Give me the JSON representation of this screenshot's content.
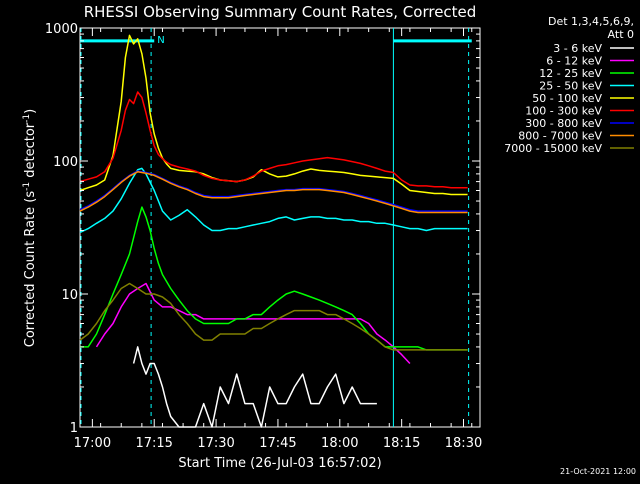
{
  "chart_data": {
    "type": "line",
    "title": "RHESSI Observing Summary Count Rates, Corrected",
    "xlabel": "Start Time (26-Jul-03 16:57:02)",
    "ylabel_main": "Corrected Count Rate (s",
    "ylabel_sup1": "-1",
    "ylabel_mid": " detector",
    "ylabel_sup2": "-1",
    "ylabel_end": ")",
    "x_unit": "minutes after 16:57:02",
    "xlim": [
      0,
      97
    ],
    "ylim": [
      1,
      1000
    ],
    "yscale": "log",
    "x_ticks": [
      {
        "value": 3,
        "label": "17:00"
      },
      {
        "value": 18,
        "label": "17:15"
      },
      {
        "value": 33,
        "label": "17:30"
      },
      {
        "value": 48,
        "label": "17:45"
      },
      {
        "value": 63,
        "label": "18:00"
      },
      {
        "value": 78,
        "label": "18:15"
      },
      {
        "value": 93,
        "label": "18:30"
      }
    ],
    "y_ticks": [
      {
        "value": 1,
        "label": "1"
      },
      {
        "value": 10,
        "label": "10"
      },
      {
        "value": 100,
        "label": "100"
      },
      {
        "value": 1000,
        "label": "1000"
      }
    ],
    "legend_title": [
      "Det 1,3,4,5,6,9,",
      "Att 0"
    ],
    "legend_position": "top-right, outside plot",
    "flags": {
      "label": "N",
      "color": "#00ffff",
      "value": 800,
      "spans": [
        [
          0,
          18
        ],
        [
          76,
          95
        ]
      ]
    },
    "vlines": {
      "solid": [
        76
      ],
      "dashed": [
        0,
        17,
        94
      ]
    },
    "series": [
      {
        "name": "3 - 6 keV",
        "color": "#ffffff",
        "x": [
          13,
          14,
          15,
          16,
          17,
          18,
          19,
          20,
          21,
          22,
          24,
          26,
          28,
          30,
          32,
          34,
          36,
          38,
          40,
          42,
          44,
          46,
          48,
          50,
          52,
          54,
          56,
          58,
          60,
          62,
          64,
          66,
          68,
          70,
          72
        ],
        "y": [
          3,
          4,
          3,
          2.5,
          3,
          3,
          2.5,
          2,
          1.5,
          1.2,
          1,
          1,
          1,
          1.5,
          1,
          2,
          1.5,
          2.5,
          1.5,
          1.5,
          1,
          2,
          1.5,
          1.5,
          2,
          2.5,
          1.5,
          1.5,
          2,
          2.5,
          1.5,
          2,
          1.5,
          1.5,
          1.5
        ]
      },
      {
        "name": "6 - 12 keV",
        "color": "#ff00ff",
        "x": [
          4,
          6,
          8,
          10,
          12,
          14,
          16,
          18,
          20,
          22,
          24,
          26,
          28,
          30,
          32,
          34,
          36,
          38,
          40,
          42,
          44,
          46,
          48,
          50,
          52,
          54,
          56,
          58,
          60,
          62,
          64,
          66,
          68,
          70,
          72,
          74,
          76,
          78,
          80
        ],
        "y": [
          4,
          5,
          6,
          8,
          10,
          11,
          12,
          9,
          8,
          8,
          7.5,
          7,
          7,
          6.5,
          6.5,
          6.5,
          6.5,
          6.5,
          6.5,
          6.5,
          6.5,
          6.5,
          6.5,
          6.5,
          6.5,
          6.5,
          6.5,
          6.5,
          6.5,
          6.5,
          6.5,
          6.5,
          6.5,
          6,
          5,
          4.5,
          4,
          3.5,
          3
        ]
      },
      {
        "name": "12 - 25 keV",
        "color": "#00ff00",
        "x": [
          0,
          2,
          4,
          6,
          8,
          10,
          12,
          14,
          15,
          16,
          17,
          18,
          19,
          20,
          22,
          24,
          26,
          28,
          30,
          32,
          34,
          36,
          38,
          40,
          42,
          44,
          46,
          48,
          50,
          52,
          54,
          56,
          58,
          60,
          62,
          64,
          66,
          68,
          70,
          72,
          74,
          76,
          78,
          80,
          82,
          84,
          86,
          88,
          90,
          92,
          94
        ],
        "y": [
          4,
          4,
          5,
          7,
          10,
          14,
          20,
          35,
          45,
          38,
          30,
          22,
          17,
          14,
          11,
          9,
          7.5,
          6.5,
          6,
          6,
          6,
          6,
          6.5,
          6.5,
          7,
          7,
          8,
          9,
          10,
          10.5,
          10,
          9.5,
          9,
          8.5,
          8,
          7.5,
          7,
          6,
          5,
          4.5,
          4,
          4,
          4,
          4,
          4,
          3.8,
          3.8,
          3.8,
          3.8,
          3.8,
          3.8
        ]
      },
      {
        "name": "25 - 50 keV",
        "color": "#00ffff",
        "x": [
          0,
          2,
          4,
          6,
          8,
          10,
          12,
          14,
          15,
          16,
          18,
          20,
          22,
          24,
          26,
          28,
          30,
          32,
          34,
          36,
          38,
          40,
          42,
          44,
          46,
          48,
          50,
          52,
          54,
          56,
          58,
          60,
          62,
          64,
          66,
          68,
          70,
          72,
          74,
          76,
          78,
          80,
          82,
          84,
          86,
          88,
          90,
          92,
          94
        ],
        "y": [
          29,
          31,
          34,
          37,
          42,
          52,
          68,
          86,
          88,
          80,
          60,
          42,
          36,
          39,
          43,
          38,
          33,
          30,
          30,
          31,
          31,
          32,
          33,
          34,
          35,
          37,
          38,
          36,
          37,
          38,
          38,
          37,
          37,
          36,
          36,
          35,
          35,
          34,
          34,
          33,
          32,
          31,
          31,
          30,
          31,
          31,
          31,
          31,
          31
        ]
      },
      {
        "name": "50 - 100 keV",
        "color": "#ffff00",
        "x": [
          0,
          2,
          4,
          6,
          8,
          10,
          11,
          12,
          13,
          14,
          15,
          16,
          17,
          18,
          19,
          20,
          21,
          22,
          24,
          26,
          28,
          30,
          32,
          34,
          36,
          38,
          40,
          42,
          44,
          46,
          48,
          50,
          52,
          54,
          56,
          58,
          60,
          62,
          64,
          66,
          68,
          70,
          72,
          74,
          76,
          78,
          80,
          82,
          84,
          86,
          88,
          90,
          92,
          94
        ],
        "y": [
          60,
          63,
          66,
          72,
          110,
          280,
          600,
          880,
          760,
          830,
          640,
          420,
          230,
          160,
          125,
          105,
          95,
          88,
          85,
          84,
          83,
          80,
          75,
          72,
          71,
          70,
          72,
          76,
          86,
          80,
          76,
          77,
          80,
          84,
          87,
          85,
          84,
          83,
          82,
          80,
          78,
          77,
          76,
          75,
          74,
          67,
          60,
          59,
          58,
          57,
          57,
          56,
          56,
          56
        ]
      },
      {
        "name": "100 - 300 keV",
        "color": "#ff0000",
        "x": [
          0,
          2,
          4,
          6,
          8,
          10,
          11,
          12,
          13,
          14,
          15,
          16,
          17,
          18,
          19,
          20,
          21,
          22,
          24,
          26,
          28,
          30,
          32,
          34,
          36,
          38,
          40,
          42,
          44,
          46,
          48,
          50,
          52,
          54,
          56,
          58,
          60,
          62,
          64,
          66,
          68,
          70,
          72,
          74,
          76,
          78,
          80,
          82,
          84,
          86,
          88,
          90,
          92,
          94
        ],
        "y": [
          70,
          73,
          76,
          83,
          105,
          170,
          240,
          290,
          270,
          330,
          300,
          230,
          170,
          130,
          112,
          104,
          98,
          94,
          90,
          87,
          84,
          78,
          74,
          72,
          71,
          70,
          72,
          77,
          84,
          88,
          92,
          94,
          97,
          100,
          102,
          104,
          106,
          104,
          102,
          99,
          96,
          92,
          88,
          84,
          82,
          72,
          66,
          65,
          65,
          64,
          64,
          63,
          63,
          63
        ]
      },
      {
        "name": "300 - 800 keV",
        "color": "#0000ff",
        "x": [
          0,
          2,
          4,
          6,
          8,
          10,
          12,
          14,
          16,
          18,
          20,
          22,
          24,
          26,
          28,
          30,
          32,
          34,
          36,
          38,
          40,
          42,
          44,
          46,
          48,
          50,
          52,
          54,
          56,
          58,
          60,
          62,
          64,
          66,
          68,
          70,
          72,
          74,
          76,
          78,
          80,
          82,
          84,
          86,
          88,
          90,
          92,
          94
        ],
        "y": [
          43,
          46,
          50,
          55,
          62,
          70,
          78,
          84,
          82,
          79,
          74,
          69,
          65,
          62,
          58,
          55,
          54,
          54,
          54,
          55,
          56,
          57,
          58,
          59,
          60,
          61,
          61,
          62,
          62,
          62,
          61,
          60,
          59,
          57,
          55,
          53,
          51,
          49,
          47,
          45,
          43,
          42,
          42,
          42,
          42,
          42,
          42,
          42
        ]
      },
      {
        "name": "800 - 7000 keV",
        "color": "#ff8c00",
        "x": [
          0,
          2,
          4,
          6,
          8,
          10,
          12,
          14,
          16,
          18,
          20,
          22,
          24,
          26,
          28,
          30,
          32,
          34,
          36,
          38,
          40,
          42,
          44,
          46,
          48,
          50,
          52,
          54,
          56,
          58,
          60,
          62,
          64,
          66,
          68,
          70,
          72,
          74,
          76,
          78,
          80,
          82,
          84,
          86,
          88,
          90,
          92,
          94
        ],
        "y": [
          42,
          45,
          49,
          54,
          61,
          69,
          77,
          83,
          81,
          78,
          73,
          68,
          64,
          61,
          57,
          54,
          53,
          53,
          53,
          54,
          55,
          56,
          57,
          58,
          59,
          60,
          60,
          61,
          61,
          61,
          60,
          59,
          58,
          56,
          54,
          52,
          50,
          48,
          46,
          44,
          42,
          41,
          41,
          41,
          41,
          41,
          41,
          41
        ]
      },
      {
        "name": "7000 - 15000 keV",
        "color": "#808000",
        "x": [
          0,
          2,
          4,
          6,
          8,
          10,
          12,
          14,
          16,
          18,
          20,
          22,
          24,
          26,
          28,
          30,
          32,
          34,
          36,
          38,
          40,
          42,
          44,
          46,
          48,
          50,
          52,
          54,
          56,
          58,
          60,
          62,
          64,
          66,
          68,
          70,
          72,
          74,
          76,
          78,
          80,
          82,
          84,
          86,
          88,
          90,
          92,
          94
        ],
        "y": [
          4.5,
          5,
          6,
          7.5,
          9,
          11,
          12,
          11,
          10,
          10,
          9.5,
          8.5,
          7,
          6,
          5,
          4.5,
          4.5,
          5,
          5,
          5,
          5,
          5.5,
          5.5,
          6,
          6.5,
          7,
          7.5,
          7.5,
          7.5,
          7.5,
          7,
          7,
          6.5,
          6,
          5.5,
          5,
          4.5,
          4,
          3.8,
          3.8,
          3.8,
          3.8,
          3.8,
          3.8,
          3.8,
          3.8,
          3.8,
          3.8
        ]
      }
    ]
  },
  "footer": {
    "date_stamp": "21-Oct-2021 12:00"
  },
  "colors": {
    "background": "#000000",
    "foreground": "#ffffff",
    "flag": "#00ffff"
  }
}
